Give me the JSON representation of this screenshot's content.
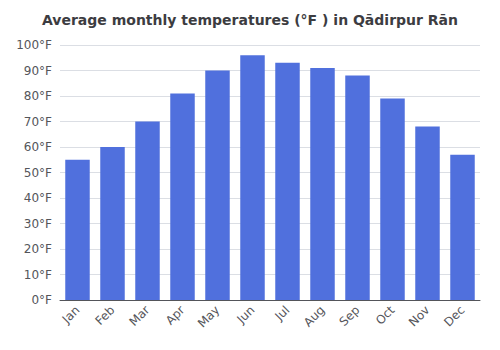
{
  "chart_data": {
    "type": "bar",
    "title": "Average monthly temperatures (°F ) in Qādirpur Rān",
    "categories": [
      "Jan",
      "Feb",
      "Mar",
      "Apr",
      "May",
      "Jun",
      "Jul",
      "Aug",
      "Sep",
      "Oct",
      "Nov",
      "Dec"
    ],
    "values": [
      55,
      60,
      70,
      81,
      90,
      96,
      93,
      91,
      88,
      79,
      68,
      57
    ],
    "ylim": [
      0,
      100
    ],
    "yticks": [
      {
        "value": 0,
        "label": "0°F"
      },
      {
        "value": 10,
        "label": "10°F"
      },
      {
        "value": 20,
        "label": "20°F"
      },
      {
        "value": 30,
        "label": "30°F"
      },
      {
        "value": 40,
        "label": "40°F"
      },
      {
        "value": 50,
        "label": "50°F"
      },
      {
        "value": 60,
        "label": "60°F"
      },
      {
        "value": 70,
        "label": "70°F"
      },
      {
        "value": 80,
        "label": "80°F"
      },
      {
        "value": 90,
        "label": "90°F"
      },
      {
        "value": 100,
        "label": "100°F"
      }
    ],
    "grid": true
  }
}
